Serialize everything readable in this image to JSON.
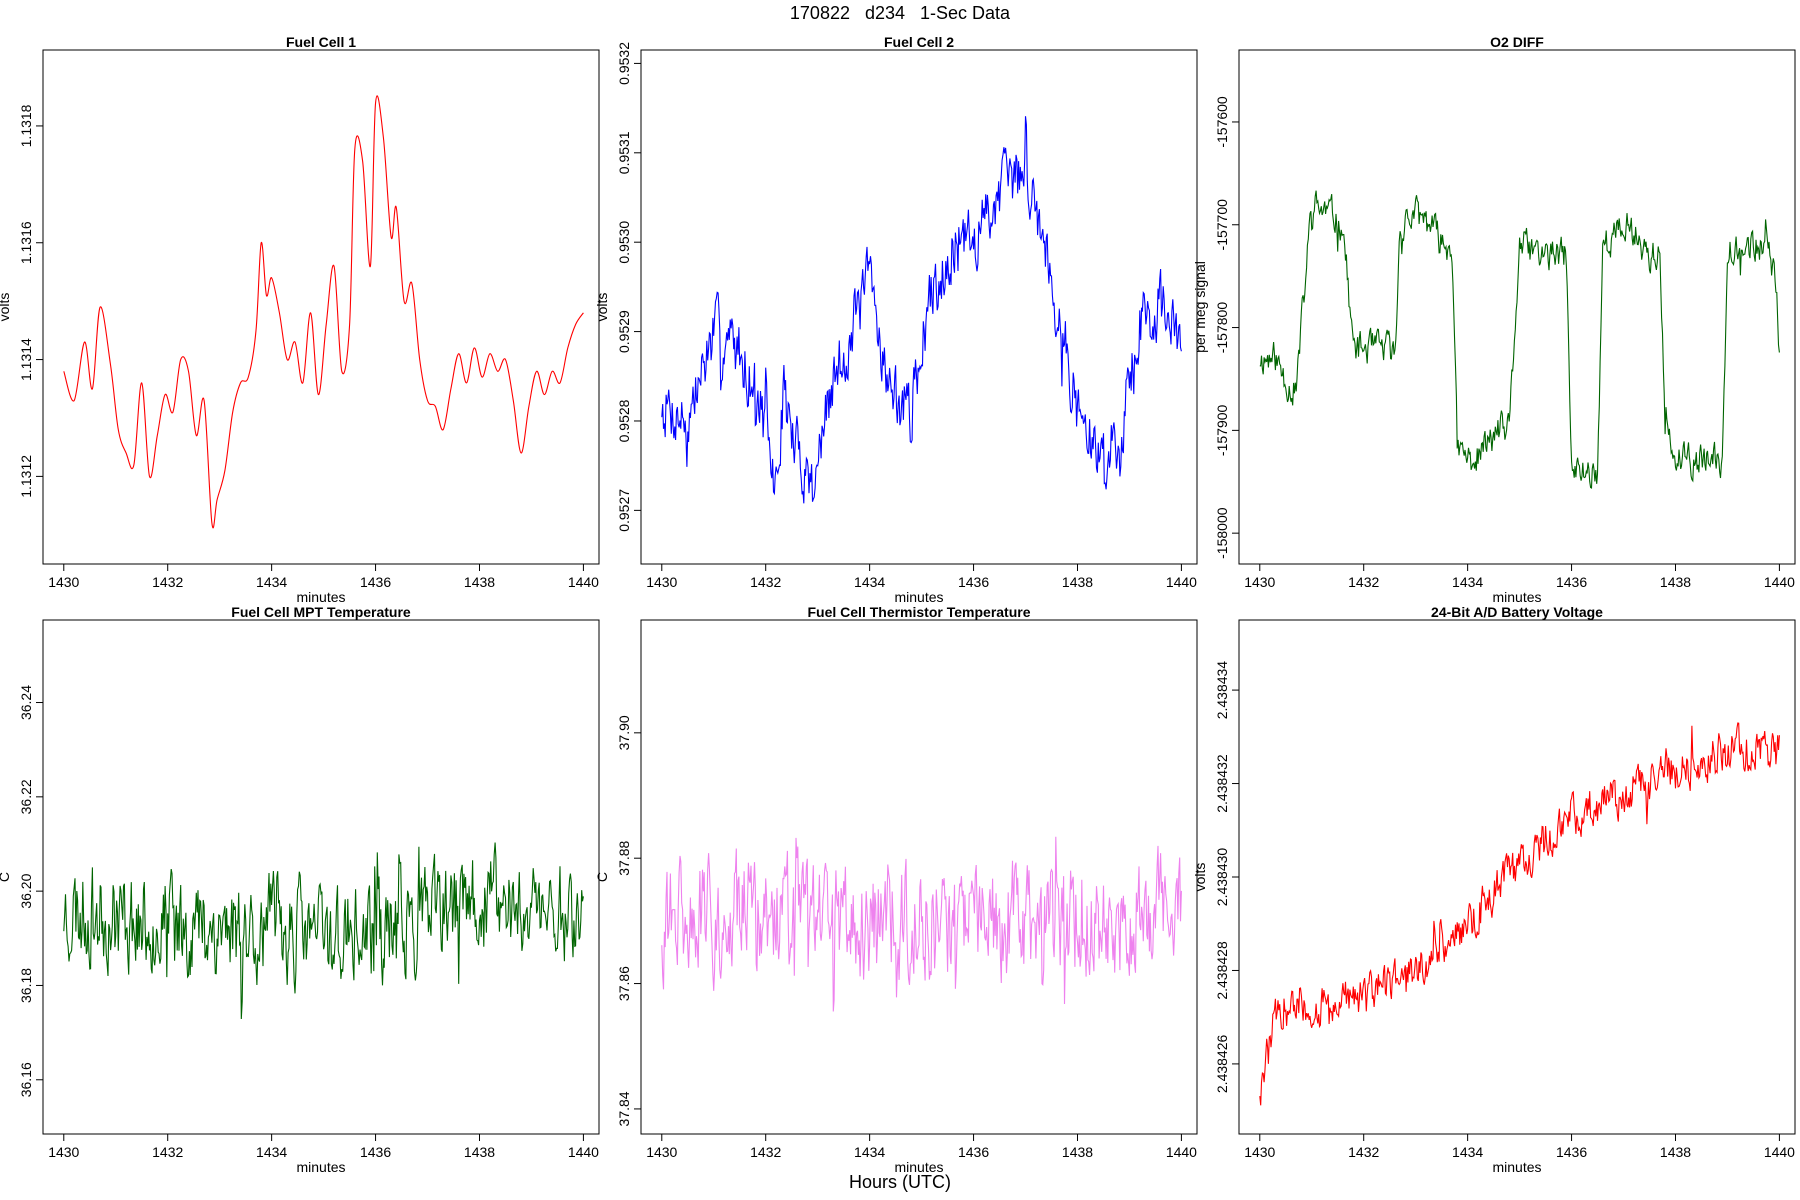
{
  "page": {
    "title": "170822   d234   1-Sec Data",
    "x_axis_title": "Hours (UTC)"
  },
  "chart_data": [
    {
      "type": "line",
      "title": "Fuel Cell 1",
      "xlabel": "minutes",
      "ylabel": "volts",
      "color": "#ff0000",
      "xlim": [
        1429.6,
        1440.3
      ],
      "ylim": [
        1.13105,
        1.13193
      ],
      "xticks": [
        "1430",
        "1432",
        "1434",
        "1436",
        "1438",
        "1440"
      ],
      "yticks": [
        "1.1312",
        "1.1314",
        "1.1316",
        "1.1318"
      ],
      "series": [
        {
          "style": "smooth",
          "x": [
            1430.0,
            1430.2,
            1430.4,
            1430.55,
            1430.7,
            1430.9,
            1431.05,
            1431.2,
            1431.35,
            1431.5,
            1431.65,
            1431.8,
            1431.95,
            1432.1,
            1432.25,
            1432.4,
            1432.55,
            1432.7,
            1432.85,
            1432.95,
            1433.1,
            1433.25,
            1433.4,
            1433.55,
            1433.7,
            1433.8,
            1433.9,
            1434.0,
            1434.15,
            1434.3,
            1434.45,
            1434.6,
            1434.75,
            1434.9,
            1435.05,
            1435.2,
            1435.35,
            1435.5,
            1435.6,
            1435.75,
            1435.9,
            1436.0,
            1436.15,
            1436.3,
            1436.4,
            1436.55,
            1436.7,
            1436.85,
            1437.0,
            1437.15,
            1437.3,
            1437.45,
            1437.6,
            1437.75,
            1437.9,
            1438.05,
            1438.2,
            1438.35,
            1438.5,
            1438.65,
            1438.8,
            1438.95,
            1439.1,
            1439.25,
            1439.4,
            1439.55,
            1439.7,
            1439.85,
            1440.0
          ],
          "y": [
            1.13138,
            1.13133,
            1.13143,
            1.13135,
            1.13149,
            1.13139,
            1.13128,
            1.13124,
            1.13122,
            1.13136,
            1.1312,
            1.13127,
            1.13134,
            1.13131,
            1.1314,
            1.13138,
            1.13127,
            1.13133,
            1.13112,
            1.13116,
            1.13121,
            1.13131,
            1.13136,
            1.13137,
            1.13145,
            1.1316,
            1.13151,
            1.13154,
            1.13148,
            1.1314,
            1.13143,
            1.13136,
            1.13148,
            1.13134,
            1.13146,
            1.13156,
            1.13138,
            1.13146,
            1.13176,
            1.13174,
            1.13156,
            1.13184,
            1.13178,
            1.13161,
            1.13166,
            1.1315,
            1.13153,
            1.1314,
            1.13133,
            1.13132,
            1.13128,
            1.13135,
            1.13141,
            1.13136,
            1.13142,
            1.13137,
            1.13141,
            1.13138,
            1.1314,
            1.13133,
            1.13124,
            1.13132,
            1.13138,
            1.13134,
            1.13138,
            1.13136,
            1.13142,
            1.13146,
            1.13148
          ]
        }
      ]
    },
    {
      "type": "line",
      "title": "Fuel Cell 2",
      "xlabel": "minutes",
      "ylabel": "volts",
      "color": "#0000ff",
      "xlim": [
        1429.6,
        1440.3
      ],
      "ylim": [
        0.95264,
        0.953215
      ],
      "xticks": [
        "1430",
        "1432",
        "1434",
        "1436",
        "1438",
        "1440"
      ],
      "yticks": [
        "0.9527",
        "0.9528",
        "0.9529",
        "0.9530",
        "0.9531",
        "0.9532"
      ],
      "series": [
        {
          "style": "noisy",
          "amp": 5.5e-05,
          "seed": 7,
          "x": [
            1430.0,
            1430.5,
            1431.0,
            1431.5,
            1431.9,
            1432.2,
            1432.35,
            1432.5,
            1432.9,
            1433.3,
            1433.6,
            1434.0,
            1434.4,
            1434.8,
            1435.1,
            1435.5,
            1436.0,
            1436.5,
            1437.0,
            1437.3,
            1437.6,
            1438.0,
            1438.4,
            1438.8,
            1439.2,
            1439.6,
            1440.0
          ],
          "y": [
            0.95282,
            0.9528,
            0.9529,
            0.95288,
            0.95282,
            0.95272,
            0.95284,
            0.95278,
            0.95273,
            0.95284,
            0.95289,
            0.95296,
            0.95283,
            0.95281,
            0.95292,
            0.95299,
            0.953,
            0.95306,
            0.95308,
            0.95302,
            0.95294,
            0.95281,
            0.95276,
            0.95278,
            0.95291,
            0.95293,
            0.95288
          ]
        }
      ]
    },
    {
      "type": "line",
      "title": "O2 DIFF",
      "xlabel": "minutes",
      "ylabel": "per meg signal",
      "color": "#006400",
      "xlim": [
        1429.6,
        1440.3
      ],
      "ylim": [
        -158030,
        -157530
      ],
      "xticks": [
        "1430",
        "1432",
        "1434",
        "1436",
        "1438",
        "1440"
      ],
      "yticks": [
        "-158000",
        "-157900",
        "-157800",
        "-157700",
        "-157600"
      ],
      "series": [
        {
          "style": "noisy",
          "amp": 25,
          "seed": 11,
          "x": [
            1430.0,
            1430.3,
            1430.6,
            1430.7,
            1431.0,
            1431.4,
            1431.6,
            1431.8,
            1432.2,
            1432.5,
            1432.6,
            1432.7,
            1433.0,
            1433.3,
            1433.5,
            1433.7,
            1433.8,
            1434.1,
            1434.6,
            1434.8,
            1435.0,
            1435.5,
            1435.9,
            1436.0,
            1436.3,
            1436.5,
            1436.6,
            1437.1,
            1437.5,
            1437.7,
            1437.8,
            1438.0,
            1438.6,
            1438.9,
            1439.0,
            1439.6,
            1439.9,
            1440.0
          ],
          "y": [
            -157830,
            -157830,
            -157860,
            -157860,
            -157680,
            -157690,
            -157700,
            -157820,
            -157820,
            -157820,
            -157830,
            -157700,
            -157690,
            -157700,
            -157720,
            -157720,
            -157920,
            -157930,
            -157900,
            -157900,
            -157720,
            -157730,
            -157730,
            -157940,
            -157940,
            -157940,
            -157720,
            -157700,
            -157730,
            -157730,
            -157900,
            -157930,
            -157930,
            -157930,
            -157720,
            -157720,
            -157740,
            -157820
          ]
        }
      ]
    },
    {
      "type": "line",
      "title": "Fuel Cell MPT Temperature",
      "xlabel": "minutes",
      "ylabel": "C",
      "color": "#006400",
      "xlim": [
        1429.6,
        1440.3
      ],
      "ylim": [
        36.1485,
        36.2575
      ],
      "xticks": [
        "1430",
        "1432",
        "1434",
        "1436",
        "1438",
        "1440"
      ],
      "yticks": [
        "36.16",
        "36.18",
        "36.20",
        "36.22",
        "36.24"
      ],
      "series": [
        {
          "style": "noisy",
          "amp": 0.016,
          "seed": 23,
          "x": [
            1430.0,
            1432.0,
            1434.0,
            1436.0,
            1438.0,
            1440.0
          ],
          "y": [
            36.196,
            36.193,
            36.192,
            36.19,
            36.198,
            36.195
          ]
        }
      ]
    },
    {
      "type": "line",
      "title": "Fuel Cell Thermistor Temperature",
      "xlabel": "minutes",
      "ylabel": "C",
      "color": "#ee82ee",
      "xlim": [
        1429.6,
        1440.3
      ],
      "ylim": [
        37.836,
        37.918
      ],
      "xticks": [
        "1430",
        "1432",
        "1434",
        "1436",
        "1438",
        "1440"
      ],
      "yticks": [
        "37.84",
        "37.86",
        "37.88",
        "37.90"
      ],
      "series": [
        {
          "style": "noisy",
          "amp": 0.014,
          "seed": 31,
          "x": [
            1430.0,
            1432.0,
            1434.0,
            1436.0,
            1438.0,
            1440.0
          ],
          "y": [
            37.87,
            37.871,
            37.869,
            37.87,
            37.87,
            37.872
          ]
        }
      ]
    },
    {
      "type": "line",
      "title": "24-Bit A/D Battery Voltage",
      "xlabel": "minutes",
      "ylabel": "volts",
      "color": "#ff0000",
      "xlim": [
        1429.6,
        1440.3
      ],
      "ylim": [
        2.4384245,
        2.4384355
      ],
      "xticks": [
        "1430",
        "1432",
        "1434",
        "1436",
        "1438",
        "1440"
      ],
      "yticks": [
        "2.438426",
        "2.438428",
        "2.438430",
        "2.438432",
        "2.438434"
      ],
      "series": [
        {
          "style": "noisy",
          "amp": 7e-07,
          "seed": 47,
          "x": [
            1430.0,
            1430.3,
            1431.0,
            1432.0,
            1433.0,
            1434.0,
            1435.0,
            1436.0,
            1437.0,
            1438.0,
            1439.0,
            1440.0
          ],
          "y": [
            2.4384255,
            2.438427,
            2.4384272,
            2.4384274,
            2.438428,
            2.438429,
            2.4384303,
            2.4384313,
            2.4384318,
            2.4384323,
            2.4384327,
            2.4384327
          ]
        }
      ]
    }
  ]
}
